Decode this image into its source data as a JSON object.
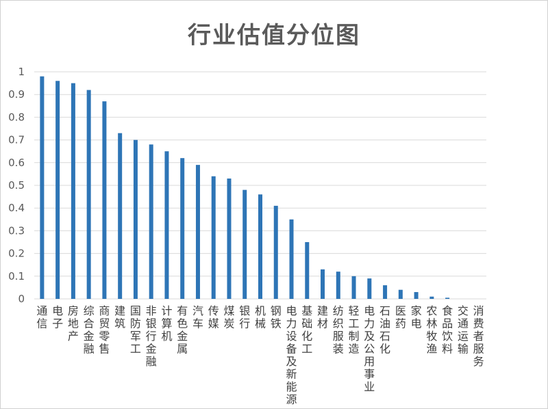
{
  "chart_data": {
    "type": "bar",
    "title": "行业估值分位图",
    "xlabel": "",
    "ylabel": "",
    "ylim": [
      0,
      1
    ],
    "yticks": [
      "0",
      "0.1",
      "0.2",
      "0.3",
      "0.4",
      "0.5",
      "0.6",
      "0.7",
      "0.8",
      "0.9",
      "1"
    ],
    "grid": true,
    "legend": "none",
    "bar_color": "#2e75b6",
    "categories": [
      "通信",
      "电子",
      "房地产",
      "综合金融",
      "商贸零售",
      "建筑",
      "国防军工",
      "非银行金融",
      "计算机",
      "有色金属",
      "汽车",
      "传媒",
      "煤炭",
      "银行",
      "机械",
      "钢铁",
      "电力设备及新能源",
      "基础化工",
      "建材",
      "纺织服装",
      "轻工制造",
      "电力及公用事业",
      "石油石化",
      "医药",
      "家电",
      "农林牧渔",
      "食品饮料",
      "交通运输",
      "消费者服务"
    ],
    "values": [
      0.98,
      0.96,
      0.95,
      0.92,
      0.87,
      0.73,
      0.7,
      0.68,
      0.65,
      0.62,
      0.59,
      0.54,
      0.53,
      0.48,
      0.46,
      0.41,
      0.35,
      0.25,
      0.13,
      0.12,
      0.1,
      0.09,
      0.06,
      0.04,
      0.03,
      0.01,
      0.005,
      0.0,
      0.0
    ]
  }
}
